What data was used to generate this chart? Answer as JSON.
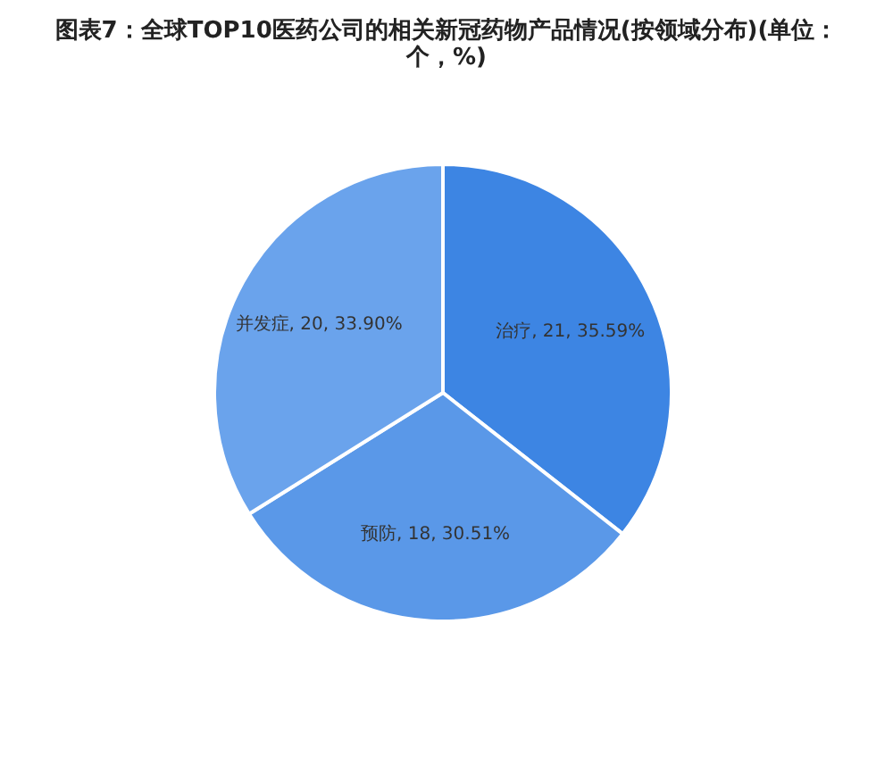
{
  "chart_data": {
    "type": "pie",
    "title": "图表7：全球TOP10医药公司的相关新冠药物产品情况(按领域分布)(单位：个，%)",
    "categories": [
      "治疗",
      "预防",
      "并发症"
    ],
    "values": [
      21,
      18,
      20
    ],
    "value_labels": [
      ", 21, 35.59%",
      ", 18, 30.51%",
      ", 20, 33.90%"
    ],
    "colors": [
      "#3d85e3",
      "#5a98e8",
      "#6aa3ec"
    ],
    "legend": false
  }
}
